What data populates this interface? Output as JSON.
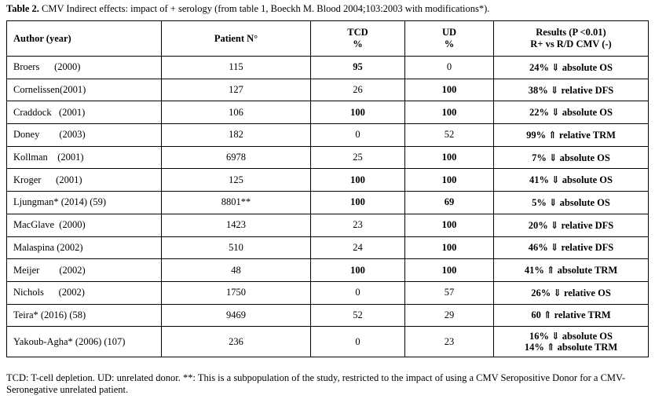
{
  "caption": {
    "label": "Table 2.",
    "text": " CMV Indirect effects: impact of + serology (from table 1, Boeckh M. Blood 2004;103:2003 with modifications*)."
  },
  "headers": {
    "author": "Author (year)",
    "patient": "Patient N°",
    "tcd_line1": "TCD",
    "tcd_line2": "%",
    "ud_line1": "UD",
    "ud_line2": "%",
    "results_line1": "Results (P <0.01)",
    "results_line2": "R+ vs R/D CMV (-)"
  },
  "rows": [
    {
      "author": "Broers      (2000)",
      "patient": "115",
      "tcd": "95",
      "tcd_bold": true,
      "ud": "0",
      "ud_bold": false,
      "result": "24% ⇓ absolute OS"
    },
    {
      "author": "Cornelissen(2001)",
      "patient": "127",
      "tcd": "26",
      "tcd_bold": false,
      "ud": "100",
      "ud_bold": true,
      "result": "38% ⇓ relative DFS"
    },
    {
      "author": "Craddock   (2001)",
      "patient": "106",
      "tcd": "100",
      "tcd_bold": true,
      "ud": "100",
      "ud_bold": true,
      "result": "22% ⇓ absolute OS"
    },
    {
      "author": "Doney        (2003)",
      "patient": "182",
      "tcd": "0",
      "tcd_bold": false,
      "ud": "52",
      "ud_bold": false,
      "result": "99% ⇑ relative TRM"
    },
    {
      "author": "Kollman    (2001)",
      "patient": "6978",
      "tcd": "25",
      "tcd_bold": false,
      "ud": "100",
      "ud_bold": true,
      "result": "7%   ⇓ absolute OS"
    },
    {
      "author": "Kroger      (2001)",
      "patient": "125",
      "tcd": "100",
      "tcd_bold": true,
      "ud": "100",
      "ud_bold": true,
      "result": "41% ⇓ absolute OS"
    },
    {
      "author": "Ljungman* (2014) (59)",
      "patient": "8801**",
      "tcd": "100",
      "tcd_bold": true,
      "ud": "69",
      "ud_bold": true,
      "result": "5% ⇓ absolute OS"
    },
    {
      "author": "MacGlave  (2000)",
      "patient": "1423",
      "tcd": "23",
      "tcd_bold": false,
      "ud": "100",
      "ud_bold": true,
      "result": "20% ⇓ relative DFS"
    },
    {
      "author": "Malaspina (2002)",
      "patient": "510",
      "tcd": "24",
      "tcd_bold": false,
      "ud": "100",
      "ud_bold": true,
      "result": "46% ⇓ relative DFS"
    },
    {
      "author": "Meijer        (2002)",
      "patient": "48",
      "tcd": "100",
      "tcd_bold": true,
      "ud": "100",
      "ud_bold": true,
      "result": "41% ⇑ absolute TRM"
    },
    {
      "author": "Nichols      (2002)",
      "patient": "1750",
      "tcd": "0",
      "tcd_bold": false,
      "ud": "57",
      "ud_bold": false,
      "result": "26% ⇓ relative OS"
    },
    {
      "author": "Teira* (2016) (58)",
      "patient": "9469",
      "tcd": "52",
      "tcd_bold": false,
      "ud": "29",
      "ud_bold": false,
      "result": "60  ⇑ relative TRM"
    }
  ],
  "last_row": {
    "author": "Yakoub-Agha* (2006) (107)",
    "patient": "236",
    "tcd": "0",
    "ud": "23",
    "result_line1": "16% ⇓ absolute OS",
    "result_line2": "14% ⇑ absolute TRM"
  },
  "footnote": "TCD: T-cell depletion. UD: unrelated donor. **: This is a subpopulation of the study, restricted to the impact of using a CMV Seropositive Donor for a CMV-Seronegative unrelated patient."
}
